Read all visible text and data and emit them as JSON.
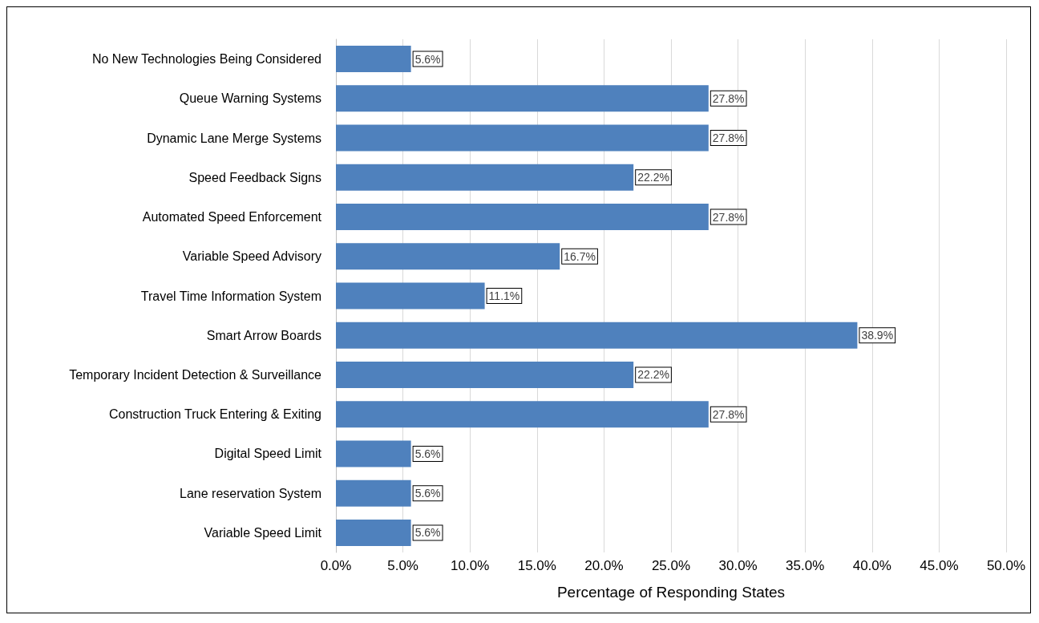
{
  "chart_data": {
    "type": "bar",
    "orientation": "horizontal",
    "xlabel": "Percentage of Responding States",
    "categories": [
      "No New Technologies Being Considered",
      "Queue Warning Systems",
      "Dynamic Lane Merge Systems",
      "Speed Feedback Signs",
      "Automated Speed Enforcement",
      "Variable Speed Advisory",
      "Travel Time Information System",
      "Smart Arrow Boards",
      "Temporary Incident Detection & Surveillance",
      "Construction Truck Entering & Exiting",
      "Digital Speed Limit",
      "Lane reservation System",
      "Variable Speed Limit"
    ],
    "values": [
      5.6,
      27.8,
      27.8,
      22.2,
      27.8,
      16.7,
      11.1,
      38.9,
      22.2,
      27.8,
      5.6,
      5.6,
      5.6
    ],
    "value_labels": [
      "5.6%",
      "27.8%",
      "27.8%",
      "22.2%",
      "27.8%",
      "16.7%",
      "11.1%",
      "38.9%",
      "22.2%",
      "27.8%",
      "5.6%",
      "5.6%",
      "5.6%"
    ],
    "color": "#4f81bd",
    "xlim": [
      0,
      50
    ],
    "xticks": [
      {
        "value": 0,
        "label": "0.0%"
      },
      {
        "value": 5,
        "label": "5.0%"
      },
      {
        "value": 10,
        "label": "10.0%"
      },
      {
        "value": 15,
        "label": "15.0%"
      },
      {
        "value": 20,
        "label": "20.0%"
      },
      {
        "value": 25,
        "label": "25.0%"
      },
      {
        "value": 30,
        "label": "30.0%"
      },
      {
        "value": 35,
        "label": "35.0%"
      },
      {
        "value": 40,
        "label": "40.0%"
      },
      {
        "value": 45,
        "label": "45.0%"
      },
      {
        "value": 50,
        "label": "50.0%"
      }
    ],
    "grid": "x"
  }
}
